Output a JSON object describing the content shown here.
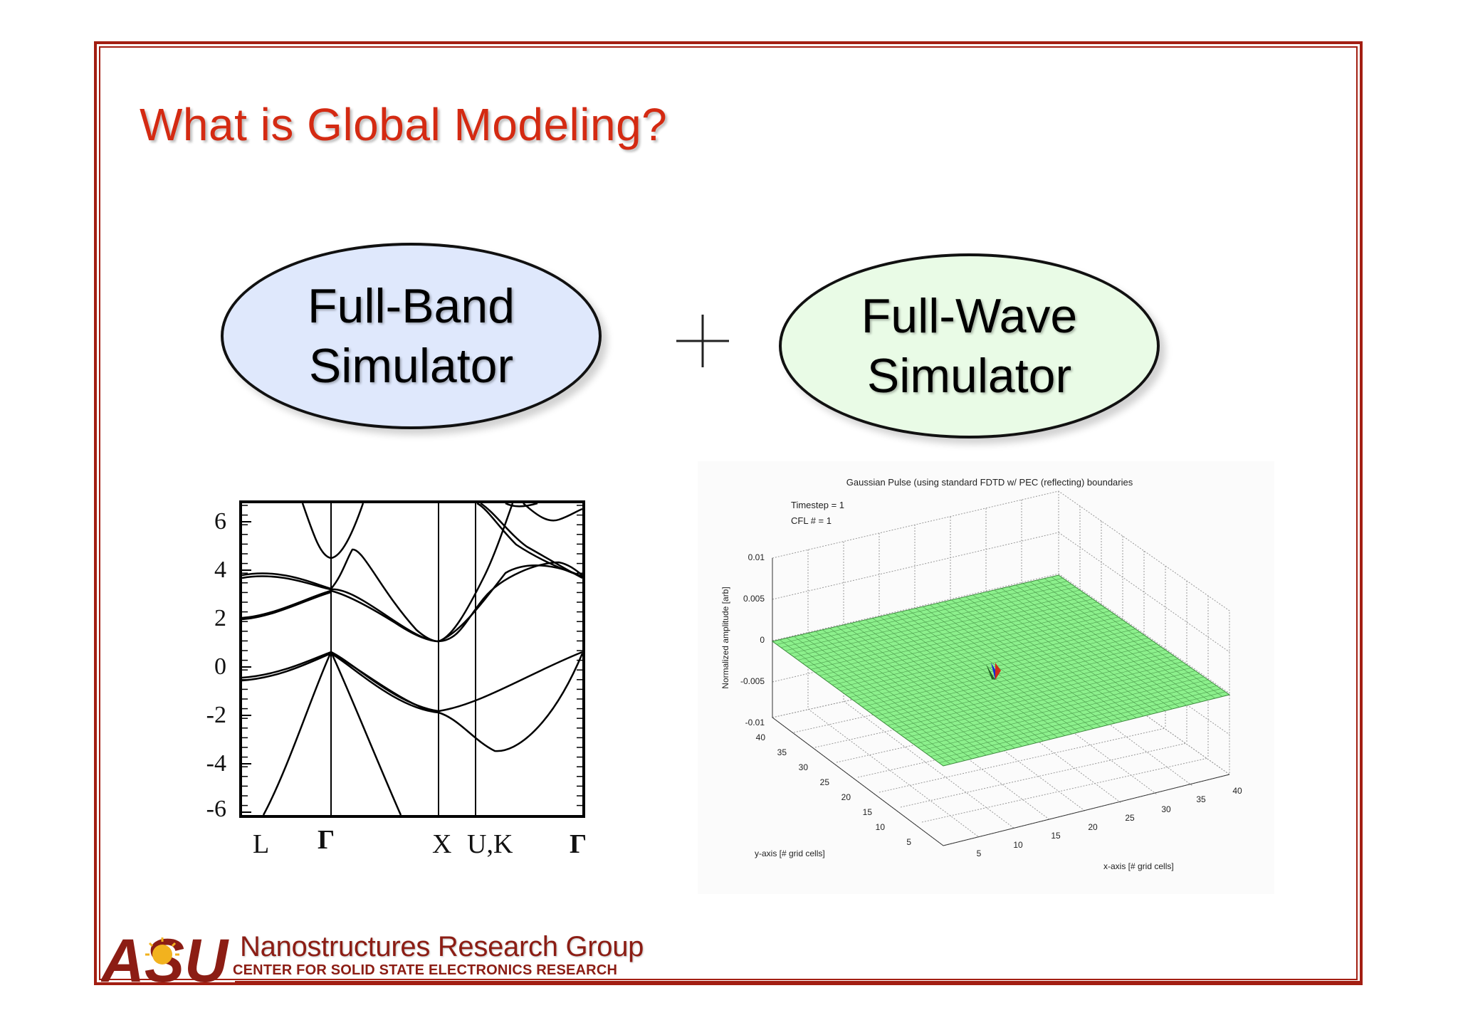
{
  "slide": {
    "title": "What is Global Modeling?"
  },
  "ovals": {
    "full_band": {
      "line1": "Full-Band",
      "line2": "Simulator",
      "fill": "#dfe8fc"
    },
    "full_wave": {
      "line1": "Full-Wave",
      "line2": "Simulator",
      "fill": "#e9fbe6"
    }
  },
  "plus_icon": "plus-icon",
  "band_structure": {
    "y_ticks": [
      "6",
      "4",
      "2",
      "0",
      "-2",
      "-4",
      "-6"
    ],
    "x_labels": [
      "L",
      "Γ",
      "X",
      "U,K",
      "Γ"
    ]
  },
  "fdtd": {
    "title": "Gaussian Pulse (using standard FDTD w/ PEC (reflecting) boundaries",
    "timestep": "Timestep = 1",
    "cfl": "CFL # = 1",
    "z_label": "Normalized amplitude [arb]",
    "z_ticks": [
      "0.01",
      "0.005",
      "0",
      "-0.005",
      "-0.01"
    ],
    "y_label": "y-axis [# grid cells]",
    "y_ticks": [
      "40",
      "35",
      "30",
      "25",
      "20",
      "15",
      "10",
      "5"
    ],
    "x_label": "x-axis [# grid cells]",
    "x_ticks": [
      "5",
      "10",
      "15",
      "20",
      "25",
      "30",
      "35",
      "40"
    ],
    "surface_color": "#8cf08c"
  },
  "footer": {
    "logo_text": "ASU",
    "group_name": "Nanostructures Research Group",
    "center_name": "CENTER FOR SOLID STATE ELECTRONICS RESEARCH"
  },
  "colors": {
    "frame": "#a31e12",
    "title": "#d42a12",
    "asu_maroon": "#8c1d14",
    "asu_gold": "#f2b21e"
  }
}
